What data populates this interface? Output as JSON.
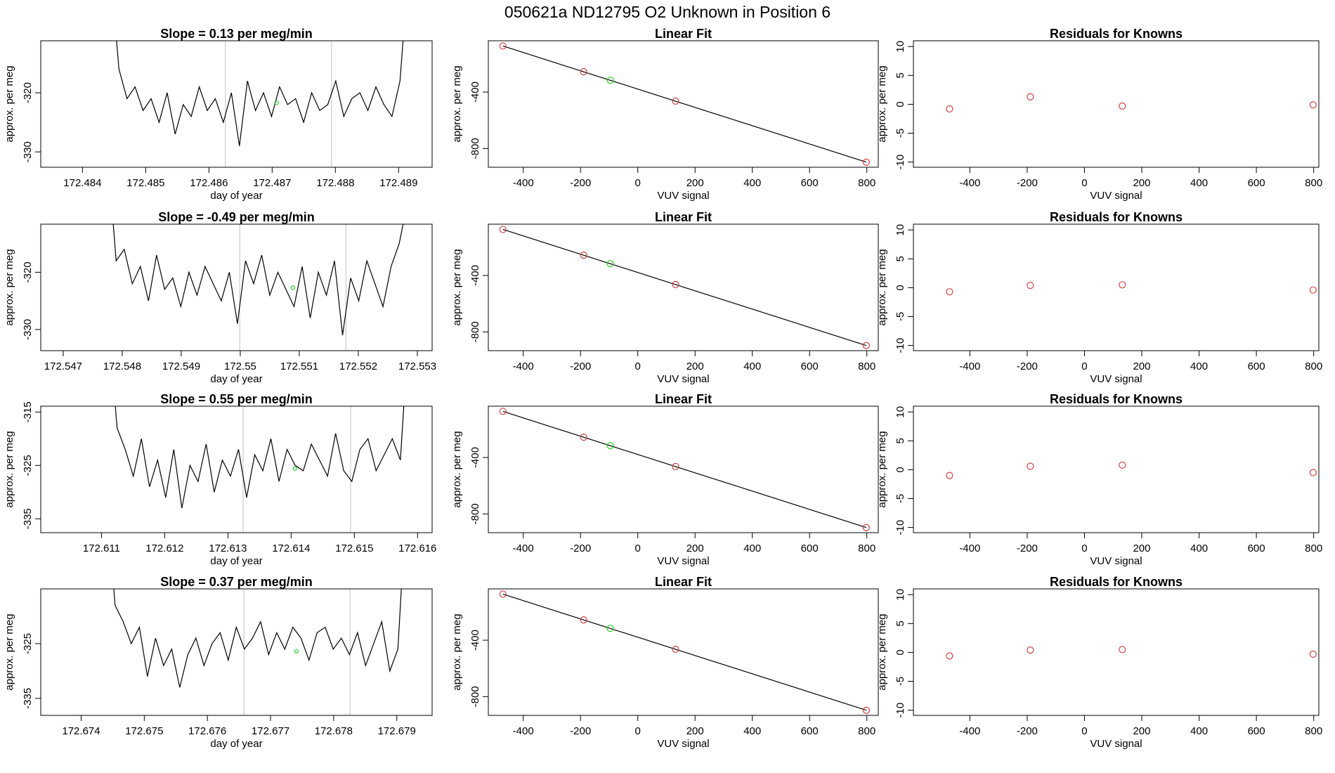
{
  "title": "050621a      ND12795    O2 Unknown in Position  6",
  "chart_data": [
    {
      "type": "line",
      "title": "Slope =  0.13  per meg/min",
      "xlabel": "day of year",
      "ylabel": "approx. per meg",
      "xlim": [
        172.48334,
        172.48953
      ],
      "ylim": [
        -332.6,
        -311.2
      ],
      "xticks": [
        172.484,
        172.485,
        172.486,
        172.487,
        172.488,
        172.489
      ],
      "yticks": [
        -330,
        -320
      ],
      "color": "#000000",
      "x": [
        172.48445,
        172.484577,
        172.484704,
        172.484831,
        172.484958,
        172.485085,
        172.485212,
        172.485339,
        172.485466,
        172.485593,
        172.48572,
        172.485847,
        172.485974,
        172.486101,
        172.486228,
        172.486355,
        172.486482,
        172.486609,
        172.486736,
        172.486863,
        172.48699,
        172.487117,
        172.487244,
        172.487371,
        172.487498,
        172.487625,
        172.487752,
        172.487879,
        172.488006,
        172.488133,
        172.48826,
        172.488387,
        172.488514,
        172.488641,
        172.488768,
        172.488895,
        172.489022,
        172.489149
      ],
      "values": [
        -300,
        -316,
        -321,
        -319,
        -323,
        -321,
        -325,
        -320,
        -327,
        -322,
        -324,
        -319,
        -323,
        -321,
        -325,
        -320,
        -329,
        -318,
        -323,
        -320,
        -324,
        -319,
        -322,
        -321,
        -325,
        -320,
        -323,
        -322,
        -318,
        -324,
        -321,
        -320,
        -323,
        -319,
        -322,
        -324,
        -318,
        -300
      ],
      "vlines": [
        172.48626,
        172.48794
      ],
      "vline_color": "#cccccc",
      "highlight": {
        "x": 172.48707,
        "y": -321.7,
        "color": "#22cc22"
      }
    },
    {
      "type": "scatter",
      "title": "Linear Fit",
      "xlabel": "VUV signal",
      "ylabel": "approx. per meg",
      "xlim": [
        -522,
        840
      ],
      "ylim": [
        -933,
        -36
      ],
      "xticks": [
        -400,
        -200,
        0,
        200,
        400,
        600,
        800
      ],
      "yticks": [
        -800,
        -400
      ],
      "color": "#cc4444",
      "x": [
        -471,
        -189,
        132,
        798
      ],
      "values": [
        -73,
        -256,
        -464,
        -897
      ],
      "highlight": {
        "x": -96,
        "y": -316,
        "color": "#22cc22"
      },
      "fit": {
        "slope": -0.649,
        "intercept": -378.7,
        "color": "#000000"
      }
    },
    {
      "type": "scatter",
      "title": "Residuals for Knowns",
      "xlabel": "VUV signal",
      "ylabel": "approx. per meg",
      "xlim": [
        -597,
        818
      ],
      "ylim": [
        -10.9,
        11
      ],
      "xticks": [
        -400,
        -200,
        0,
        200,
        400,
        600,
        800
      ],
      "yticks": [
        -10,
        -5,
        0,
        5,
        10
      ],
      "color": "#cc4444",
      "x": [
        -471,
        -189,
        132,
        798
      ],
      "values": [
        -0.8,
        1.3,
        -0.3,
        -0.1
      ]
    },
    {
      "type": "line",
      "title": "Slope =  -0.49  per meg/min",
      "xlabel": "day of year",
      "ylabel": "approx. per meg",
      "xlim": [
        172.54662,
        172.55325
      ],
      "ylim": [
        -333.7,
        -311.6
      ],
      "xticks": [
        172.547,
        172.548,
        172.549,
        172.55,
        172.551,
        172.552,
        172.553
      ],
      "yticks": [
        -330,
        -320
      ],
      "xtick_labels_fixed": null,
      "color": "#000000",
      "x": [
        172.54776,
        172.547897,
        172.548034,
        172.548171,
        172.548308,
        172.548445,
        172.548582,
        172.548719,
        172.548856,
        172.548993,
        172.54913,
        172.549267,
        172.549404,
        172.549541,
        172.549678,
        172.549815,
        172.549952,
        172.550089,
        172.550226,
        172.550363,
        172.5505,
        172.550637,
        172.550774,
        172.550911,
        172.551048,
        172.551185,
        172.551322,
        172.551459,
        172.551596,
        172.551733,
        172.55187,
        172.552007,
        172.552144,
        172.552281,
        172.552418,
        172.552555,
        172.552692,
        172.552829
      ],
      "values": [
        -300,
        -318,
        -316,
        -322,
        -319,
        -325,
        -317,
        -323,
        -321,
        -326,
        -320,
        -324,
        -319,
        -322,
        -325,
        -320,
        -329,
        -318,
        -322,
        -317,
        -324,
        -320,
        -323,
        -326,
        -319,
        -328,
        -320,
        -324,
        -318,
        -331,
        -321,
        -325,
        -318,
        -322,
        -326,
        -319,
        -315,
        -308
      ],
      "vlines": [
        172.54999,
        172.55179
      ],
      "vline_color": "#cccccc",
      "highlight": {
        "x": 172.55089,
        "y": -322.7,
        "color": "#22cc22"
      }
    },
    {
      "type": "scatter",
      "title": "Linear Fit",
      "xlabel": "VUV signal",
      "ylabel": "approx. per meg",
      "xlim": [
        -522,
        840
      ],
      "ylim": [
        -933,
        -36
      ],
      "xticks": [
        -400,
        -200,
        0,
        200,
        400,
        600,
        800
      ],
      "yticks": [
        -800,
        -400
      ],
      "color": "#cc4444",
      "x": [
        -471,
        -189,
        132,
        798
      ],
      "values": [
        -73,
        -256,
        -464,
        -897
      ],
      "highlight": {
        "x": -96,
        "y": -316,
        "color": "#22cc22"
      },
      "fit": {
        "slope": -0.649,
        "intercept": -378.7,
        "color": "#000000"
      }
    },
    {
      "type": "scatter",
      "title": "Residuals for Knowns",
      "xlabel": "VUV signal",
      "ylabel": "approx. per meg",
      "xlim": [
        -597,
        818
      ],
      "ylim": [
        -10.9,
        11
      ],
      "xticks": [
        -400,
        -200,
        0,
        200,
        400,
        600,
        800
      ],
      "yticks": [
        -10,
        -5,
        0,
        5,
        10
      ],
      "color": "#cc4444",
      "x": [
        -471,
        -189,
        132,
        798
      ],
      "values": [
        -0.7,
        0.4,
        0.5,
        -0.4
      ]
    },
    {
      "type": "line",
      "title": "Slope =  0.55  per meg/min",
      "xlabel": "day of year",
      "ylabel": "approx. per meg",
      "xlim": [
        172.61004,
        172.61623
      ],
      "ylim": [
        -337.6,
        -313.9
      ],
      "xticks": [
        172.611,
        172.612,
        172.613,
        172.614,
        172.615,
        172.616
      ],
      "yticks": [
        -335,
        -325,
        -315
      ],
      "color": "#000000",
      "x": [
        172.61112,
        172.611248,
        172.611376,
        172.611504,
        172.611632,
        172.61176,
        172.611888,
        172.612016,
        172.612144,
        172.612272,
        172.6124,
        172.612528,
        172.612656,
        172.612784,
        172.612912,
        172.61304,
        172.613168,
        172.613296,
        172.613424,
        172.613552,
        172.61368,
        172.613808,
        172.613936,
        172.614064,
        172.614192,
        172.61432,
        172.614448,
        172.614576,
        172.614704,
        172.614832,
        172.61496,
        172.615088,
        172.615216,
        172.615344,
        172.615472,
        172.6156,
        172.615728,
        172.615856
      ],
      "values": [
        -300,
        -318,
        -322,
        -327,
        -320,
        -329,
        -324,
        -331,
        -322,
        -333,
        -325,
        -328,
        -321,
        -330,
        -324,
        -327,
        -322,
        -331,
        -323,
        -326,
        -320,
        -328,
        -322,
        -325,
        -326,
        -321,
        -324,
        -327,
        -319,
        -326,
        -328,
        -322,
        -320,
        -326,
        -323,
        -320,
        -324,
        -300
      ],
      "vlines": [
        172.61324,
        172.61494
      ],
      "vline_color": "#cccccc",
      "highlight": {
        "x": 172.61406,
        "y": -325.6,
        "color": "#22cc22"
      }
    },
    {
      "type": "scatter",
      "title": "Linear Fit",
      "xlabel": "VUV signal",
      "ylabel": "approx. per meg",
      "xlim": [
        -522,
        840
      ],
      "ylim": [
        -933,
        -36
      ],
      "xticks": [
        -400,
        -200,
        0,
        200,
        400,
        600,
        800
      ],
      "yticks": [
        -800,
        -400
      ],
      "color": "#cc4444",
      "x": [
        -471,
        -189,
        132,
        798
      ],
      "values": [
        -73,
        -256,
        -464,
        -897
      ],
      "highlight": {
        "x": -96,
        "y": -316,
        "color": "#22cc22"
      },
      "fit": {
        "slope": -0.649,
        "intercept": -378.7,
        "color": "#000000"
      }
    },
    {
      "type": "scatter",
      "title": "Residuals for Knowns",
      "xlabel": "VUV signal",
      "ylabel": "approx. per meg",
      "xlim": [
        -597,
        818
      ],
      "ylim": [
        -10.9,
        11
      ],
      "xticks": [
        -400,
        -200,
        0,
        200,
        400,
        600,
        800
      ],
      "yticks": [
        -10,
        -5,
        0,
        5,
        10
      ],
      "color": "#cc4444",
      "x": [
        -471,
        -189,
        132,
        798
      ],
      "values": [
        -1,
        0.6,
        0.8,
        -0.5
      ]
    },
    {
      "type": "line",
      "title": "Slope =  0.37  per meg/min",
      "xlabel": "day of year",
      "ylabel": "approx. per meg",
      "xlim": [
        172.67336,
        172.67956
      ],
      "ylim": [
        -338.1,
        -315
      ],
      "xticks": [
        172.674,
        172.675,
        172.676,
        172.677,
        172.678,
        172.679
      ],
      "yticks": [
        -335,
        -325
      ],
      "color": "#000000",
      "x": [
        172.67441,
        172.674538,
        172.674666,
        172.674794,
        172.674922,
        172.67505,
        172.675178,
        172.675306,
        172.675434,
        172.675562,
        172.67569,
        172.675818,
        172.675946,
        172.676074,
        172.676202,
        172.67633,
        172.676458,
        172.676586,
        172.676714,
        172.676842,
        172.67697,
        172.677098,
        172.677226,
        172.677354,
        172.677482,
        172.67761,
        172.677738,
        172.677866,
        172.677994,
        172.678122,
        172.67825,
        172.678378,
        172.678506,
        172.678634,
        172.678762,
        172.67889,
        172.679018,
        172.679146
      ],
      "values": [
        -300,
        -318,
        -321,
        -325,
        -322,
        -331,
        -324,
        -329,
        -326,
        -333,
        -327,
        -324,
        -329,
        -325,
        -323,
        -328,
        -322,
        -326,
        -324,
        -321,
        -327,
        -323,
        -326,
        -322,
        -324,
        -328,
        -323,
        -322,
        -326,
        -324,
        -327,
        -323,
        -329,
        -325,
        -321,
        -330,
        -326,
        -300
      ],
      "vlines": [
        172.67658,
        172.67826
      ],
      "vline_color": "#cccccc",
      "highlight": {
        "x": 172.67741,
        "y": -326.4,
        "color": "#22cc22"
      }
    },
    {
      "type": "scatter",
      "title": "Linear Fit",
      "xlabel": "VUV signal",
      "ylabel": "approx. per meg",
      "xlim": [
        -522,
        840
      ],
      "ylim": [
        -933,
        -36
      ],
      "xticks": [
        -400,
        -200,
        0,
        200,
        400,
        600,
        800
      ],
      "yticks": [
        -800,
        -400
      ],
      "color": "#cc4444",
      "x": [
        -471,
        -189,
        132,
        798
      ],
      "values": [
        -73,
        -256,
        -464,
        -897
      ],
      "highlight": {
        "x": -96,
        "y": -316,
        "color": "#22cc22"
      },
      "fit": {
        "slope": -0.649,
        "intercept": -378.7,
        "color": "#000000"
      }
    },
    {
      "type": "scatter",
      "title": "Residuals for Knowns",
      "xlabel": "VUV signal",
      "ylabel": "approx. per meg",
      "xlim": [
        -597,
        818
      ],
      "ylim": [
        -10.9,
        11
      ],
      "xticks": [
        -400,
        -200,
        0,
        200,
        400,
        600,
        800
      ],
      "yticks": [
        -10,
        -5,
        0,
        5,
        10
      ],
      "color": "#cc4444",
      "x": [
        -471,
        -189,
        132,
        798
      ],
      "values": [
        -0.6,
        0.4,
        0.5,
        -0.3
      ]
    }
  ]
}
